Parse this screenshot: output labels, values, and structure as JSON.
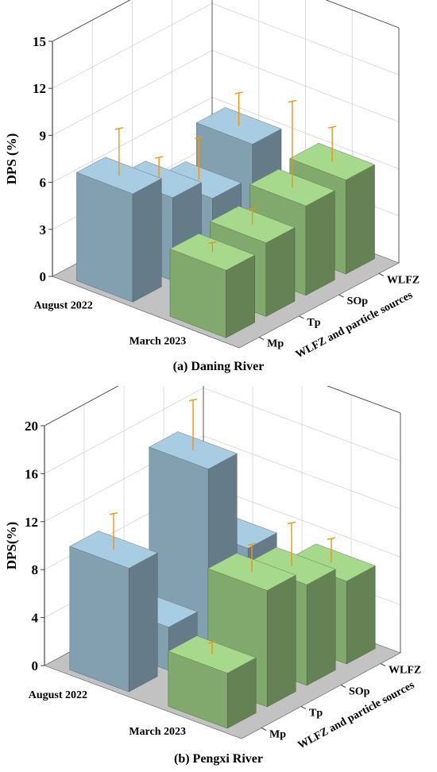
{
  "chart_data": [
    {
      "type": "bar3d",
      "panel_label": "(a) Daning River",
      "ylabel": "DPS (%)",
      "depth_axis_label": "WLFZ and particle sources",
      "zlim": [
        0,
        15
      ],
      "z_ticks": [
        "0",
        "3",
        "6",
        "9",
        "12",
        "15"
      ],
      "date_categories": [
        "August 2022",
        "March 2023"
      ],
      "source_categories": [
        "Mp",
        "Tp",
        "SOp",
        "WLFZ"
      ],
      "series": [
        {
          "date": "August 2022",
          "color": "#a8cde3",
          "values": [
            6.9,
            5.3,
            3.9,
            6.0
          ],
          "errors": [
            3.0,
            1.4,
            2.7,
            2.1
          ]
        },
        {
          "date": "March 2023",
          "color": "#a6d98c",
          "values": [
            null,
            null,
            5.7,
            6.0
          ],
          "errors": [
            null,
            null,
            5.5,
            2.2
          ]
        }
      ],
      "march_extra": {
        "Mp": [
          4.3,
          0.6
        ],
        "Tp": [
          4.7,
          1.0
        ]
      }
    },
    {
      "type": "bar3d",
      "panel_label": "(b) Pengxi River",
      "ylabel": "DPS(%)",
      "depth_axis_label": "WLFZ and particle sources",
      "zlim": [
        0,
        20
      ],
      "z_ticks": [
        "0",
        "4",
        "8",
        "12",
        "16",
        "20"
      ],
      "date_categories": [
        "August 2022",
        "March 2023"
      ],
      "source_categories": [
        "Mp",
        "Tp",
        "SOp",
        "WLFZ"
      ],
      "series": [
        {
          "date": "August 2022",
          "color": "#a8cde3",
          "values": [
            10.3,
            3.6,
            15.0,
            6.6
          ],
          "errors": [
            3.0,
            0.8,
            4.2,
            0.3
          ]
        },
        {
          "date": "March 2023",
          "color": "#a6d98c",
          "values": [
            4.6,
            9.7,
            8.4,
            6.9
          ],
          "errors": [
            1.0,
            2.3,
            3.6,
            2.0
          ]
        }
      ]
    }
  ],
  "colors": {
    "aug": "#a8cde3",
    "mar": "#a6d98c",
    "error": "#f0930f",
    "floor": "#c2c2c2",
    "grid": "#d4d4d4"
  }
}
